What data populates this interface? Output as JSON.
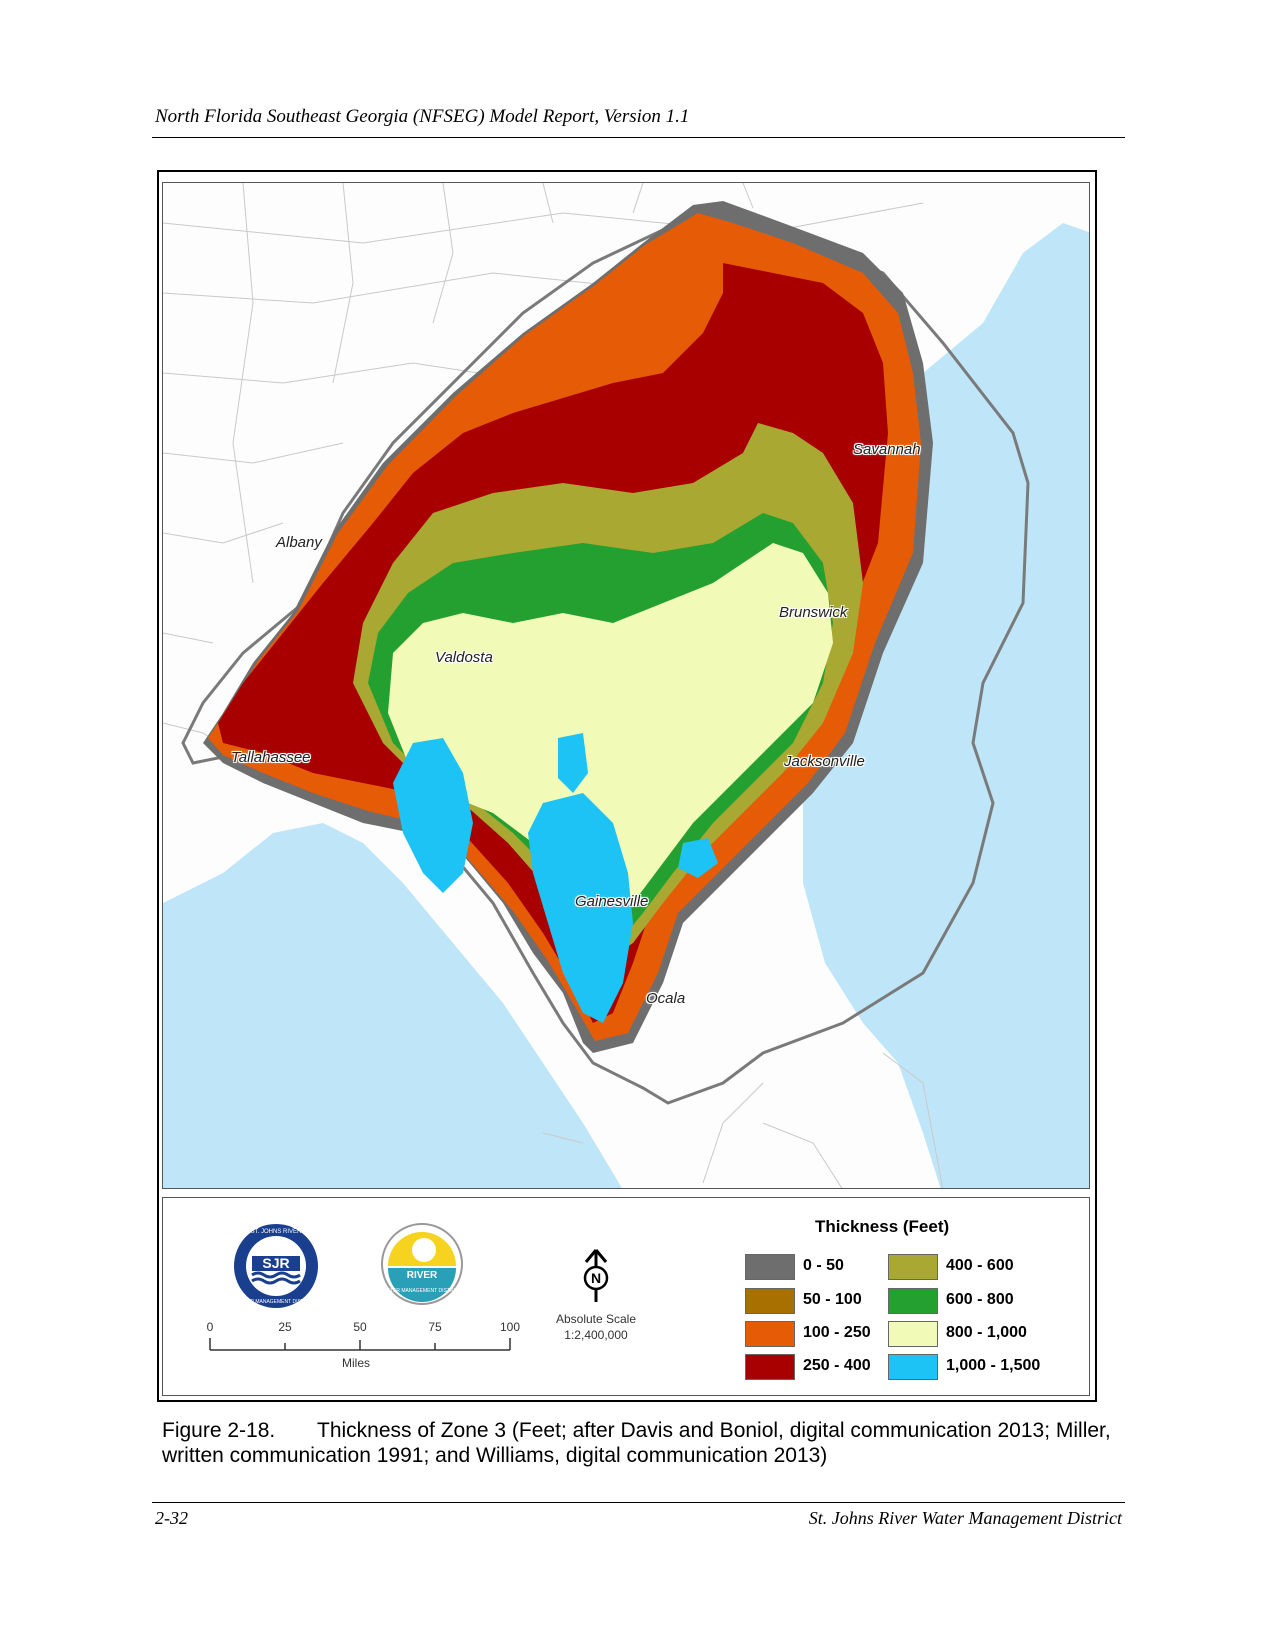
{
  "header": {
    "running_title": "North Florida Southeast Georgia (NFSEG) Model Report, Version 1.1"
  },
  "map": {
    "colors": {
      "ocean": "#bfe6f8",
      "land": "#fdfdfd",
      "county_lines": "#c9c9c9",
      "boundary": "#7a7a7a"
    },
    "cities": [
      {
        "name": "Savannah"
      },
      {
        "name": "Albany"
      },
      {
        "name": "Brunswick"
      },
      {
        "name": "Valdosta"
      },
      {
        "name": "Tallahassee"
      },
      {
        "name": "Jacksonville"
      },
      {
        "name": "Gainesville"
      },
      {
        "name": "Ocala"
      }
    ]
  },
  "legend": {
    "title": "Thickness (Feet)",
    "classes": [
      {
        "label": "0 - 50",
        "color": "#6e6e6e"
      },
      {
        "label": "50 - 100",
        "color": "#a87000"
      },
      {
        "label": "100 - 250",
        "color": "#e65b05"
      },
      {
        "label": "250 - 400",
        "color": "#a80000"
      },
      {
        "label": "400 - 600",
        "color": "#a8a832"
      },
      {
        "label": "600 - 800",
        "color": "#24a031"
      },
      {
        "label": "800 - 1,000",
        "color": "#f1fab6"
      },
      {
        "label": "1,000 - 1,500",
        "color": "#1cc3f4"
      }
    ]
  },
  "scalebar": {
    "ticks": [
      "0",
      "25",
      "50",
      "75",
      "100"
    ],
    "units": "Miles"
  },
  "north_arrow": {
    "letter": "N"
  },
  "absolute_scale": {
    "label": "Absolute Scale",
    "value": "1:2,400,000"
  },
  "logos": {
    "sjr": {
      "text": "SJR",
      "ring_top": "ST. JOHNS RIVER",
      "ring_bottom": "WATER MANAGEMENT DISTRICT"
    },
    "srwmd": {
      "text": "RIVER",
      "ring_bottom": "WATER MANAGEMENT DISTRICT"
    }
  },
  "caption": {
    "figure_number": "Figure 2-18.",
    "text": "Thickness of Zone 3 (Feet; after Davis and Boniol, digital communication 2013; Miller, written communication 1991; and Williams, digital communication 2013)"
  },
  "footer": {
    "page_number": "2-32",
    "organization": "St. Johns River Water Management District"
  }
}
